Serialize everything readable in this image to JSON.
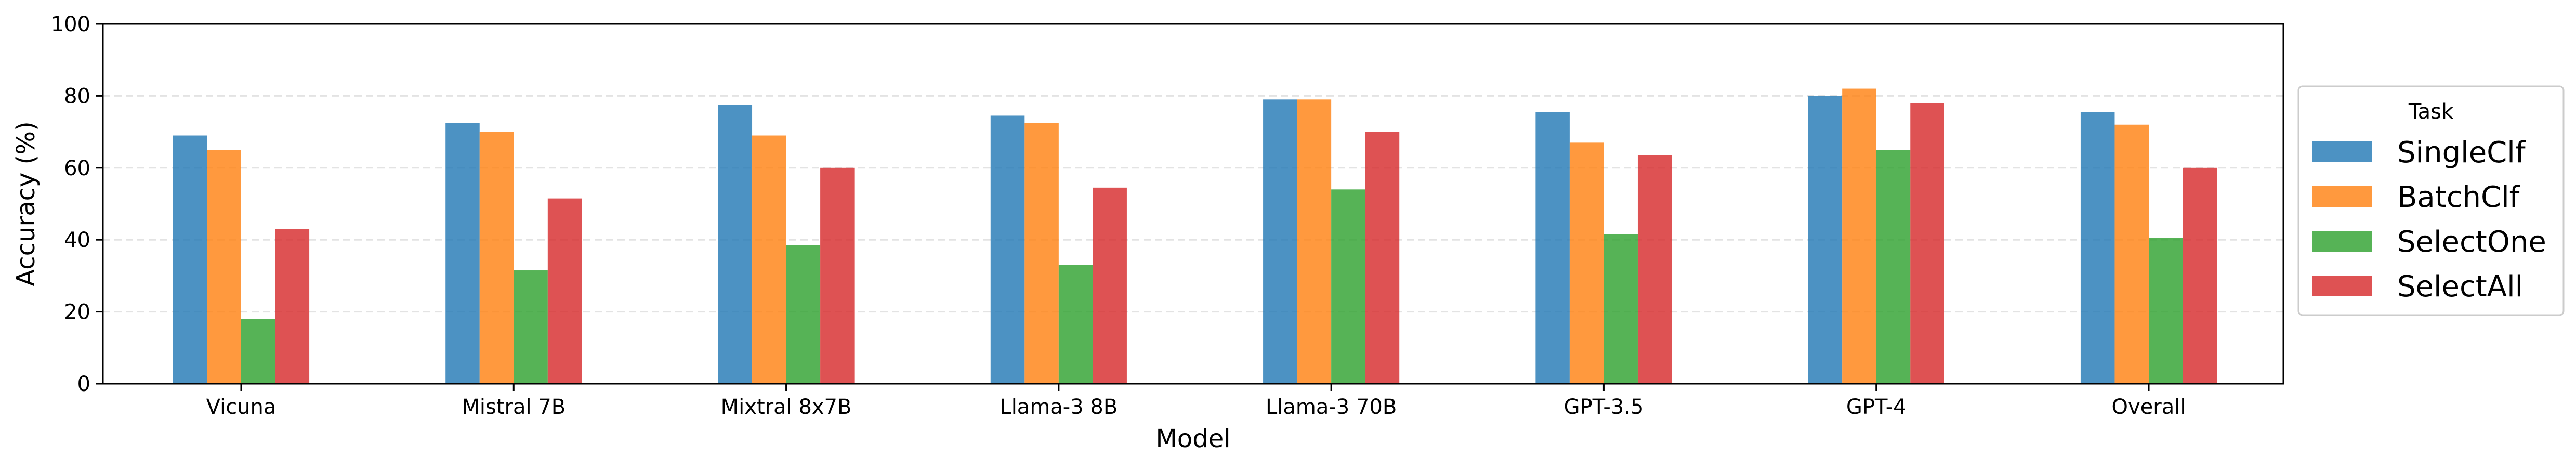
{
  "chart_data": {
    "type": "bar",
    "xlabel": "Model",
    "ylabel": "Accuracy (%)",
    "ylim": [
      0,
      100
    ],
    "yticks": [
      0,
      20,
      40,
      60,
      80,
      100
    ],
    "grid": "y-dashed",
    "categories": [
      "Vicuna",
      "Mistral 7B",
      "Mixtral 8x7B",
      "Llama-3 8B",
      "Llama-3 70B",
      "GPT-3.5",
      "GPT-4",
      "Overall"
    ],
    "legend": {
      "title": "Task",
      "placement": "right"
    },
    "series": [
      {
        "name": "SingleClf",
        "color": "#1f77b4",
        "values": [
          69,
          72.5,
          77.5,
          74.5,
          79,
          75.5,
          80,
          75.5
        ]
      },
      {
        "name": "BatchClf",
        "color": "#ff7f0e",
        "values": [
          65,
          70,
          69,
          72.5,
          79,
          67,
          82,
          72
        ]
      },
      {
        "name": "SelectOne",
        "color": "#2ca02c",
        "values": [
          18,
          31.5,
          38.5,
          33,
          54,
          41.5,
          65,
          40.5
        ]
      },
      {
        "name": "SelectAll",
        "color": "#d62728",
        "values": [
          43,
          51.5,
          60,
          54.5,
          70,
          63.5,
          78,
          60
        ]
      }
    ]
  }
}
